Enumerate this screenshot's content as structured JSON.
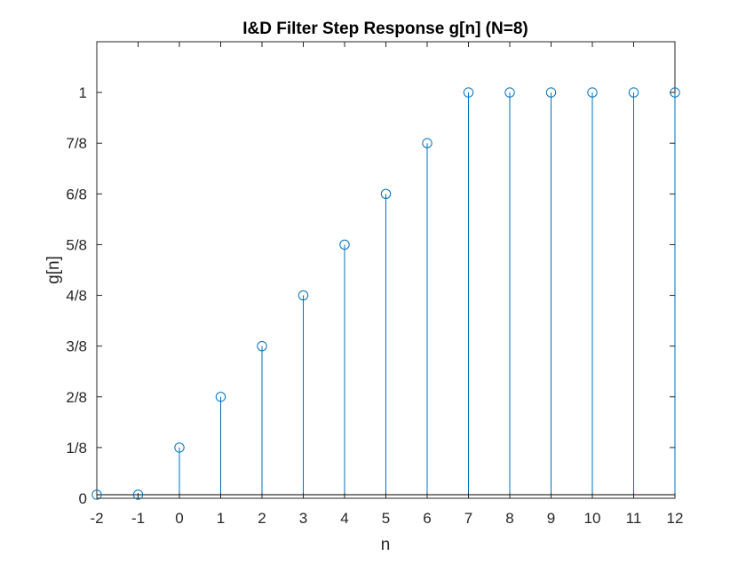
{
  "chart_data": {
    "type": "stem",
    "title": "I&D Filter Step Response g[n] (N=8)",
    "xlabel": "n",
    "ylabel": "g[n]",
    "xlim": [
      -2,
      12
    ],
    "ylim": [
      0,
      1.125
    ],
    "x_ticks": [
      -2,
      -1,
      0,
      1,
      2,
      3,
      4,
      5,
      6,
      7,
      8,
      9,
      10,
      11,
      12
    ],
    "x_tick_labels": [
      "-2",
      "-1",
      "0",
      "1",
      "2",
      "3",
      "4",
      "5",
      "6",
      "7",
      "8",
      "9",
      "10",
      "11",
      "12"
    ],
    "y_ticks": [
      0,
      0.125,
      0.25,
      0.375,
      0.5,
      0.625,
      0.75,
      0.875,
      1
    ],
    "y_tick_labels": [
      "0",
      "1/8",
      "2/8",
      "3/8",
      "4/8",
      "5/8",
      "6/8",
      "7/8",
      "1"
    ],
    "x": [
      -2,
      -1,
      0,
      1,
      2,
      3,
      4,
      5,
      6,
      7,
      8,
      9,
      10,
      11,
      12
    ],
    "values": [
      0,
      0,
      0.125,
      0.25,
      0.375,
      0.5,
      0.625,
      0.75,
      0.875,
      1,
      1,
      1,
      1,
      1,
      1
    ],
    "marker": "circle",
    "grid": false,
    "colors": {
      "stem": "#0072bd",
      "axis": "#262626",
      "baseline": "#000000"
    }
  }
}
